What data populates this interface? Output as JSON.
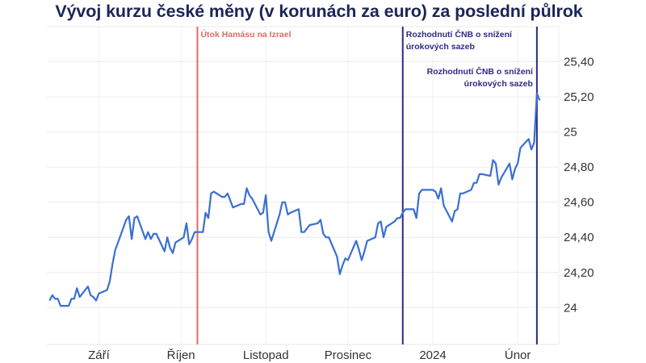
{
  "chart_data": {
    "type": "line",
    "title": "Vývoj kurzu české měny (v korunách za euro) za poslední půlrok",
    "xlabel": "",
    "ylabel": "",
    "ylim": [
      23.79,
      25.6
    ],
    "xlim": [
      "2023-08-13",
      "2024-02-16"
    ],
    "grid": true,
    "y_ticks": [
      {
        "value": 24,
        "label": "24"
      },
      {
        "value": 24.2,
        "label": "24,20"
      },
      {
        "value": 24.4,
        "label": "24,40"
      },
      {
        "value": 24.6,
        "label": "24,60"
      },
      {
        "value": 24.8,
        "label": "24,80"
      },
      {
        "value": 25,
        "label": "25"
      },
      {
        "value": 25.2,
        "label": "25,20"
      },
      {
        "value": 25.4,
        "label": "25,40"
      }
    ],
    "x_ticks": [
      {
        "date": "2023-09-01",
        "label": "Září"
      },
      {
        "date": "2023-10-01",
        "label": "Říjen"
      },
      {
        "date": "2023-11-01",
        "label": "Listopad"
      },
      {
        "date": "2023-12-01",
        "label": "Prosinec"
      },
      {
        "date": "2024-01-01",
        "label": "2024"
      },
      {
        "date": "2024-02-01",
        "label": "Únor"
      }
    ],
    "events": [
      {
        "date": "2023-10-07",
        "label_lines": [
          "Útok Hamásu na Izrael"
        ],
        "color": "#e06a66",
        "align": "left",
        "row": 0
      },
      {
        "date": "2023-12-21",
        "label_lines": [
          "Rozhodnutí ČNB o snížení",
          "úrokových sazeb"
        ],
        "color": "#2d2a86",
        "align": "left",
        "row": 0
      },
      {
        "date": "2024-02-08",
        "label_lines": [
          "Rozhodnutí ČNB o snížení",
          "úrokových sazeb"
        ],
        "color": "#2d2a86",
        "align": "right",
        "row": 1
      }
    ],
    "series": [
      {
        "color": "#3b6fd1",
        "x": [
          "2023-08-14",
          "2023-08-15",
          "2023-08-16",
          "2023-08-17",
          "2023-08-18",
          "2023-08-21",
          "2023-08-22",
          "2023-08-23",
          "2023-08-24",
          "2023-08-25",
          "2023-08-28",
          "2023-08-29",
          "2023-08-30",
          "2023-08-31",
          "2023-09-01",
          "2023-09-04",
          "2023-09-05",
          "2023-09-06",
          "2023-09-07",
          "2023-09-08",
          "2023-09-11",
          "2023-09-12",
          "2023-09-13",
          "2023-09-14",
          "2023-09-15",
          "2023-09-18",
          "2023-09-19",
          "2023-09-20",
          "2023-09-21",
          "2023-09-22",
          "2023-09-25",
          "2023-09-26",
          "2023-09-27",
          "2023-09-28",
          "2023-09-29",
          "2023-10-02",
          "2023-10-03",
          "2023-10-04",
          "2023-10-05",
          "2023-10-06",
          "2023-10-09",
          "2023-10-10",
          "2023-10-11",
          "2023-10-12",
          "2023-10-13",
          "2023-10-16",
          "2023-10-17",
          "2023-10-18",
          "2023-10-19",
          "2023-10-20",
          "2023-10-23",
          "2023-10-24",
          "2023-10-25",
          "2023-10-26",
          "2023-10-27",
          "2023-10-30",
          "2023-10-31",
          "2023-11-01",
          "2023-11-02",
          "2023-11-03",
          "2023-11-06",
          "2023-11-07",
          "2023-11-08",
          "2023-11-09",
          "2023-11-10",
          "2023-11-13",
          "2023-11-14",
          "2023-11-15",
          "2023-11-16",
          "2023-11-17",
          "2023-11-20",
          "2023-11-21",
          "2023-11-22",
          "2023-11-23",
          "2023-11-24",
          "2023-11-27",
          "2023-11-28",
          "2023-11-29",
          "2023-11-30",
          "2023-12-01",
          "2023-12-04",
          "2023-12-05",
          "2023-12-06",
          "2023-12-07",
          "2023-12-08",
          "2023-12-11",
          "2023-12-12",
          "2023-12-13",
          "2023-12-14",
          "2023-12-15",
          "2023-12-18",
          "2023-12-19",
          "2023-12-20",
          "2023-12-21",
          "2023-12-22",
          "2023-12-25",
          "2023-12-26",
          "2023-12-27",
          "2023-12-28",
          "2023-12-29",
          "2024-01-01",
          "2024-01-02",
          "2024-01-03",
          "2024-01-04",
          "2024-01-05",
          "2024-01-08",
          "2024-01-09",
          "2024-01-10",
          "2024-01-11",
          "2024-01-12",
          "2024-01-15",
          "2024-01-16",
          "2024-01-17",
          "2024-01-18",
          "2024-01-19",
          "2024-01-22",
          "2024-01-23",
          "2024-01-24",
          "2024-01-25",
          "2024-01-26",
          "2024-01-29",
          "2024-01-30",
          "2024-01-31",
          "2024-02-01",
          "2024-02-02",
          "2024-02-05",
          "2024-02-06",
          "2024-02-07",
          "2024-02-08",
          "2024-02-09"
        ],
        "values": [
          24.04,
          24.07,
          24.05,
          24.05,
          24.01,
          24.01,
          24.05,
          24.05,
          24.11,
          24.06,
          24.12,
          24.07,
          24.06,
          24.04,
          24.08,
          24.1,
          24.15,
          24.25,
          24.33,
          24.37,
          24.5,
          24.52,
          24.39,
          24.51,
          24.52,
          24.39,
          24.43,
          24.39,
          24.42,
          24.42,
          24.32,
          24.4,
          24.34,
          24.31,
          24.37,
          24.4,
          24.48,
          24.36,
          24.39,
          24.43,
          24.43,
          24.54,
          24.51,
          24.65,
          24.66,
          24.63,
          24.63,
          24.65,
          24.61,
          24.57,
          24.59,
          24.59,
          24.68,
          24.64,
          24.62,
          24.53,
          24.54,
          24.64,
          24.43,
          24.38,
          24.53,
          24.6,
          24.6,
          24.53,
          24.54,
          24.56,
          24.43,
          24.43,
          24.45,
          24.47,
          24.48,
          24.5,
          24.42,
          24.4,
          24.4,
          24.29,
          24.19,
          24.24,
          24.28,
          24.27,
          24.38,
          24.33,
          24.27,
          24.32,
          24.38,
          24.4,
          24.48,
          24.49,
          24.4,
          24.46,
          24.49,
          24.51,
          24.51,
          24.54,
          24.56,
          24.56,
          24.51,
          24.65,
          24.67,
          24.67,
          24.67,
          24.66,
          24.62,
          24.68,
          24.58,
          24.49,
          24.55,
          24.56,
          24.65,
          24.65,
          24.67,
          24.71,
          24.71,
          24.76,
          24.76,
          24.75,
          24.84,
          24.82,
          24.7,
          24.74,
          24.82,
          24.73,
          24.79,
          24.82,
          24.91,
          24.96,
          24.9,
          24.94,
          25.22,
          25.18
        ]
      }
    ]
  }
}
